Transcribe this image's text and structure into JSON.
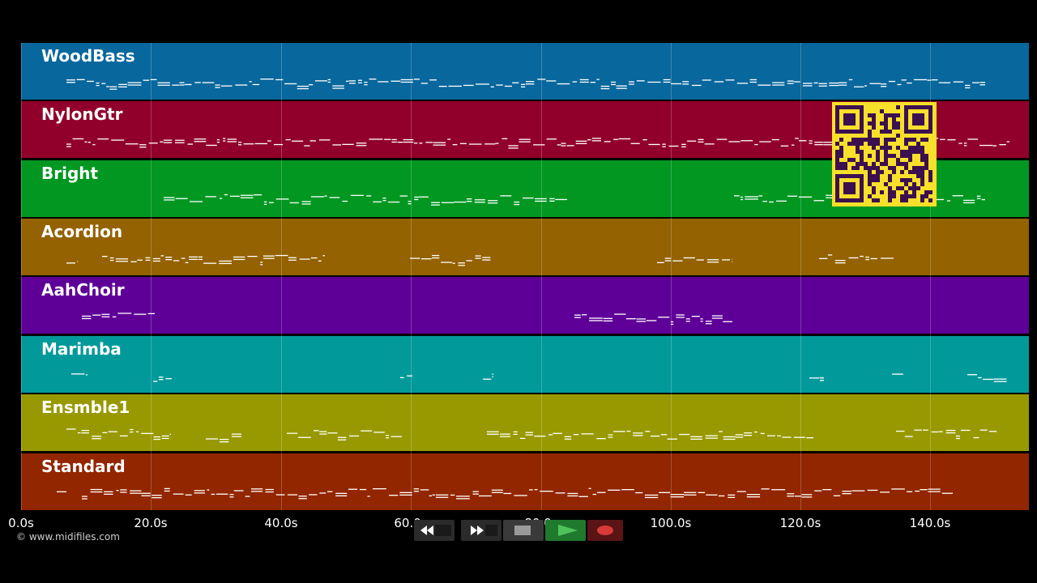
{
  "tracks": [
    {
      "name": "WoodBass",
      "color": "#08679c"
    },
    {
      "name": "NylonGtr",
      "color": "#91002b"
    },
    {
      "name": "Bright",
      "color": "#019721"
    },
    {
      "name": "Acordion",
      "color": "#946200"
    },
    {
      "name": "AahChoir",
      "color": "#5e0097"
    },
    {
      "name": "Marimba",
      "color": "#02999a"
    },
    {
      "name": "Ensmble1",
      "color": "#989900"
    },
    {
      "name": "Standard",
      "color": "#922600"
    }
  ],
  "timeline": {
    "ticks": [
      "0.0s",
      "20.0s",
      "40.0s",
      "60.0s",
      "80.0s",
      "100.0s",
      "120.0s",
      "140.0s"
    ]
  },
  "copyright": "© www.midifiles.com",
  "controls": [
    {
      "name": "rewind-icon",
      "label": "Rewind"
    },
    {
      "name": "fast-forward-icon",
      "label": "Fast forward"
    },
    {
      "name": "stop-icon",
      "label": "Stop"
    },
    {
      "name": "play-icon",
      "label": "Play"
    },
    {
      "name": "record-icon",
      "label": "Record"
    }
  ],
  "colors": {
    "note": "#ffffff",
    "qr_background": "#f7e02a",
    "qr_modules": "#3c1050",
    "play_button": "#1f7a2e",
    "record_button": "#5a1414"
  }
}
